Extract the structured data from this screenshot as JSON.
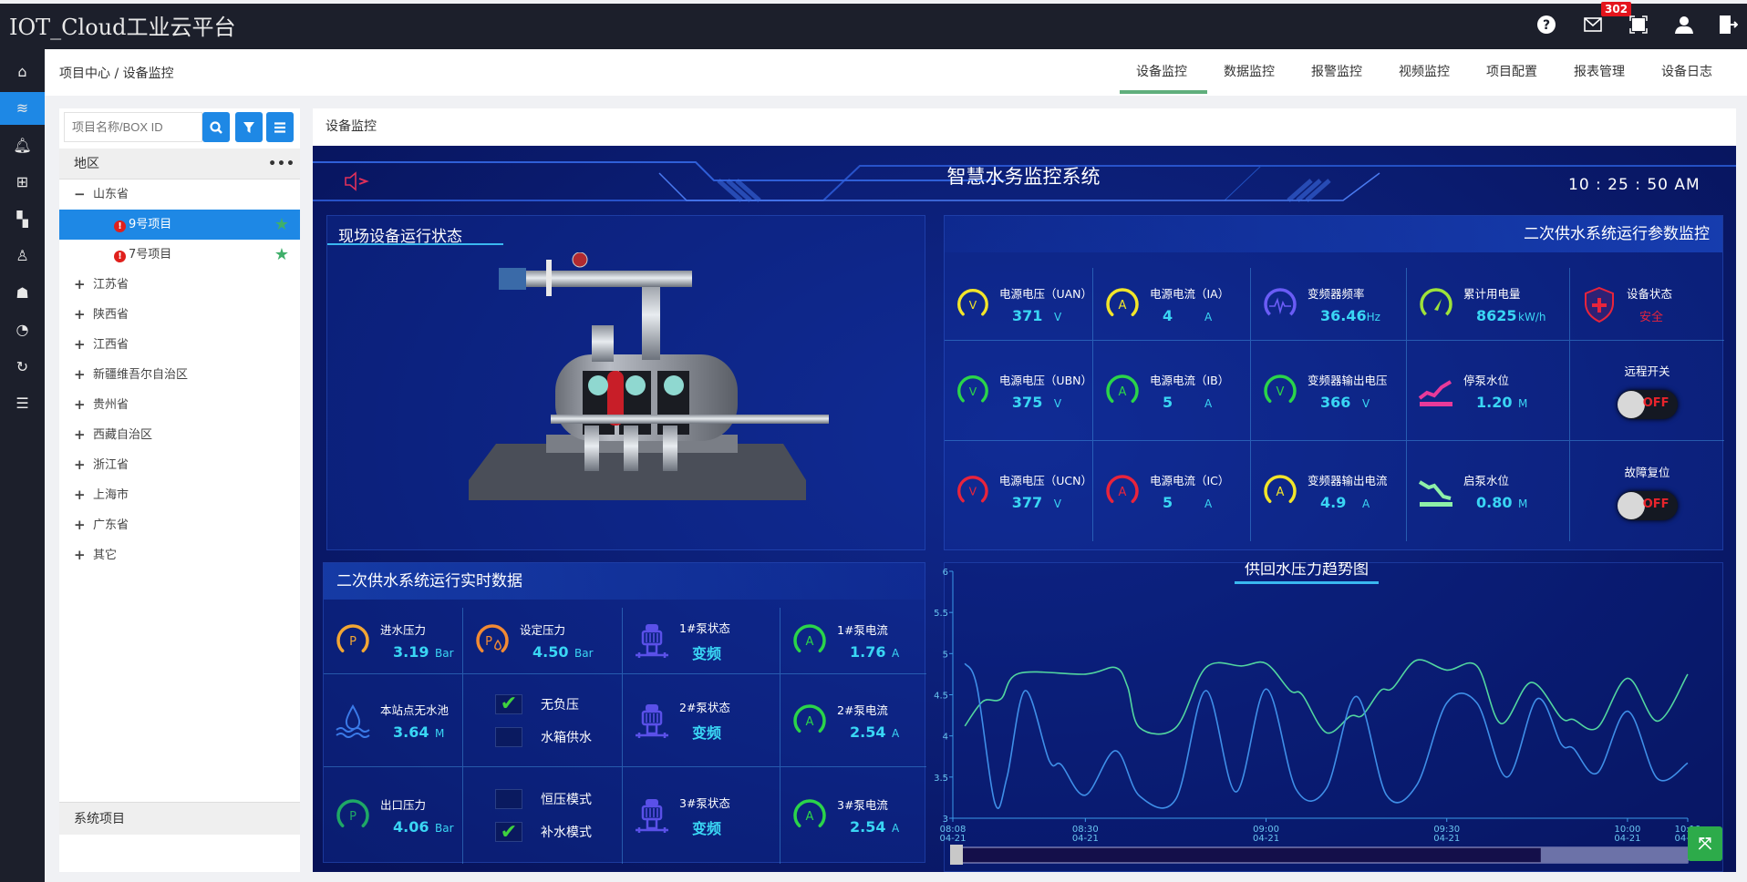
{
  "app": {
    "title": "IOT_Cloud工业云平台",
    "mail_badge": "302",
    "top_icons": [
      "help-icon",
      "mail-icon",
      "fullscreen-icon",
      "user-icon",
      "logout-icon"
    ]
  },
  "sidebar": {
    "icons": [
      "home-icon",
      "layers-icon",
      "bell-icon",
      "add-document-icon",
      "dashboard-icon",
      "user-icon",
      "user-group-icon",
      "gauge-icon",
      "refresh-icon",
      "list-icon"
    ],
    "active_index": 1,
    "active_color": "#1e88e5"
  },
  "breadcrumb": "项目中心 / 设备监控",
  "nav": {
    "tabs": [
      "设备监控",
      "数据监控",
      "报警监控",
      "视频监控",
      "项目配置",
      "报表管理",
      "设备日志"
    ],
    "active": "设备监控"
  },
  "left": {
    "search_placeholder": "项目名称/BOX ID",
    "region_header": "地区",
    "more": "•••",
    "tree": [
      {
        "label": "山东省",
        "sign": "−",
        "level": 0
      },
      {
        "label": "9号项目",
        "level": 1,
        "alert": true,
        "star": true,
        "selected": true
      },
      {
        "label": "7号项目",
        "level": 1,
        "alert": true,
        "star": true
      },
      {
        "label": "江苏省",
        "sign": "+",
        "level": 0
      },
      {
        "label": "陕西省",
        "sign": "+",
        "level": 0
      },
      {
        "label": "江西省",
        "sign": "+",
        "level": 0
      },
      {
        "label": "新疆维吾尔自治区",
        "sign": "+",
        "level": 0
      },
      {
        "label": "贵州省",
        "sign": "+",
        "level": 0
      },
      {
        "label": "西藏自治区",
        "sign": "+",
        "level": 0
      },
      {
        "label": "浙江省",
        "sign": "+",
        "level": 0
      },
      {
        "label": "上海市",
        "sign": "+",
        "level": 0
      },
      {
        "label": "广东省",
        "sign": "+",
        "level": 0
      },
      {
        "label": "其它",
        "sign": "+",
        "level": 0
      }
    ],
    "system_header": "系统项目"
  },
  "right_header": "设备监控",
  "dashboard": {
    "title": "智慧水务监控系统",
    "time": "10 : 25 : 50  AM",
    "equipment_panel_title": "现场设备运行状态",
    "params_title": "二次供水系统运行参数监控",
    "params": [
      {
        "label": "电源电压（UAN）",
        "value": "371",
        "unit": "V",
        "icon": "gauge",
        "letter": "V",
        "color": "#f2e52a"
      },
      {
        "label": "电源电流（IA）",
        "value": "4",
        "unit": "A",
        "icon": "gauge",
        "letter": "A",
        "color": "#f2e52a"
      },
      {
        "label": "变频器频率",
        "value": "36.46",
        "unit": "Hz",
        "icon": "wave",
        "color": "#6a5cf6"
      },
      {
        "label": "累计用电量",
        "value": "8625",
        "unit": "kW/h",
        "icon": "meter",
        "color": "#9ee23a"
      },
      {
        "label": "设备状态",
        "value": "安全",
        "icon": "shield",
        "color": "#e8243c"
      },
      {
        "label": "电源电压（UBN）",
        "value": "375",
        "unit": "V",
        "icon": "gauge",
        "letter": "V",
        "color": "#2bd44a"
      },
      {
        "label": "电源电流（IB）",
        "value": "5",
        "unit": "A",
        "icon": "gauge",
        "letter": "A",
        "color": "#2bd44a"
      },
      {
        "label": "变频器输出电压",
        "value": "366",
        "unit": "V",
        "icon": "gauge",
        "letter": "V",
        "color": "#2bd44a"
      },
      {
        "label": "停泵水位",
        "value": "1.20",
        "unit": "M",
        "icon": "level-up",
        "color": "#e83a9a"
      },
      {
        "label": "远程开关",
        "value": "OFF",
        "icon": "toggle"
      },
      {
        "label": "电源电压（UCN）",
        "value": "377",
        "unit": "V",
        "icon": "gauge",
        "letter": "V",
        "color": "#e8243c"
      },
      {
        "label": "电源电流（IC）",
        "value": "5",
        "unit": "A",
        "icon": "gauge",
        "letter": "A",
        "color": "#e8243c"
      },
      {
        "label": "变频器输出电流",
        "value": "4.9",
        "unit": "A",
        "icon": "gauge",
        "letter": "A",
        "color": "#f2e52a"
      },
      {
        "label": "启泵水位",
        "value": "0.80",
        "unit": "M",
        "icon": "level-down",
        "color": "#8ef0a8"
      },
      {
        "label": "故障复位",
        "value": "OFF",
        "icon": "toggle"
      }
    ],
    "realtime_title": "二次供水系统运行实时数据",
    "realtime": [
      {
        "label": "进水压力",
        "value": "3.19",
        "unit": "Bar",
        "icon": "gauge",
        "letter": "P",
        "color": "#f2a634"
      },
      {
        "label": "设定压力",
        "value": "4.50",
        "unit": "Bar",
        "icon": "gauge-drop",
        "letter": "P",
        "color": "#f28a34"
      },
      {
        "label": "1#泵状态",
        "value": "变频",
        "icon": "pump",
        "color": "#5a50e8"
      },
      {
        "label": "1#泵电流",
        "value": "1.76",
        "unit": "A",
        "icon": "gauge",
        "letter": "A",
        "color": "#2bd44a"
      },
      {
        "label": "本站点无水池",
        "value": "3.64",
        "unit": "M",
        "icon": "water",
        "color": "#3a7ae8"
      },
      {
        "icon": "checks",
        "checks": [
          {
            "label": "无负压",
            "checked": true
          },
          {
            "label": "水箱供水",
            "checked": false
          }
        ]
      },
      {
        "label": "2#泵状态",
        "value": "变频",
        "icon": "pump",
        "color": "#5a50e8"
      },
      {
        "label": "2#泵电流",
        "value": "2.54",
        "unit": "A",
        "icon": "gauge",
        "letter": "A",
        "color": "#2bd44a"
      },
      {
        "label": "出口压力",
        "value": "4.06",
        "unit": "Bar",
        "icon": "gauge",
        "letter": "P",
        "color": "#1fa866"
      },
      {
        "icon": "checks",
        "checks": [
          {
            "label": "恒压模式",
            "checked": false
          },
          {
            "label": "补水模式",
            "checked": true
          }
        ]
      },
      {
        "label": "3#泵状态",
        "value": "变频",
        "icon": "pump",
        "color": "#5a50e8"
      },
      {
        "label": "3#泵电流",
        "value": "2.54",
        "unit": "A",
        "icon": "gauge",
        "letter": "A",
        "color": "#2bd44a"
      }
    ]
  },
  "chart_data": {
    "type": "line",
    "title": "供回水压力趋势图",
    "ylim": [
      3,
      6
    ],
    "yticks": [
      "3",
      "3.5",
      "4",
      "4.5",
      "5",
      "5.5",
      "6"
    ],
    "xlim": [
      "08:08",
      "10:10"
    ],
    "xticks": [
      {
        "t": "08:08",
        "label": [
          "08:08",
          "04-21"
        ]
      },
      {
        "t": "08:30",
        "label": [
          "08:30",
          "04-21"
        ]
      },
      {
        "t": "09:00",
        "label": [
          "09:00",
          "04-21"
        ]
      },
      {
        "t": "09:30",
        "label": [
          "09:30",
          "04-21"
        ]
      },
      {
        "t": "10:00",
        "label": [
          "10:00",
          "04-21"
        ]
      },
      {
        "t": "10:10",
        "label": [
          "10:10",
          "04-21"
        ]
      }
    ],
    "grid": false,
    "slider_range_percent": [
      80,
      100
    ],
    "series": [
      {
        "color": "#52d6a0",
        "points": [
          [
            "08:10",
            4.12
          ],
          [
            "08:13",
            4.42
          ],
          [
            "08:16",
            4.45
          ],
          [
            "08:19",
            4.76
          ],
          [
            "08:30",
            4.75
          ],
          [
            "08:35",
            4.83
          ],
          [
            "08:37",
            4.6
          ],
          [
            "08:39",
            4.1
          ],
          [
            "08:45",
            4.1
          ],
          [
            "08:50",
            4.83
          ],
          [
            "08:56",
            4.85
          ],
          [
            "09:00",
            4.88
          ],
          [
            "09:04",
            4.55
          ],
          [
            "09:06",
            4.5
          ],
          [
            "09:10",
            4.04
          ],
          [
            "09:14",
            4.24
          ],
          [
            "09:16",
            4.25
          ],
          [
            "09:19",
            4.55
          ],
          [
            "09:21",
            4.58
          ],
          [
            "09:25",
            4.92
          ],
          [
            "09:30",
            4.8
          ],
          [
            "09:35",
            4.85
          ],
          [
            "09:39",
            4.15
          ],
          [
            "09:44",
            4.65
          ],
          [
            "09:49",
            4.22
          ],
          [
            "09:51",
            4.2
          ],
          [
            "09:55",
            4.1
          ],
          [
            "10:00",
            4.7
          ],
          [
            "10:05",
            4.18
          ],
          [
            "10:10",
            4.75
          ]
        ]
      },
      {
        "color": "#3f8fe8",
        "points": [
          [
            "08:10",
            4.88
          ],
          [
            "08:12",
            4.6
          ],
          [
            "08:15",
            3.18
          ],
          [
            "08:17",
            3.5
          ],
          [
            "08:20",
            4.55
          ],
          [
            "08:24",
            3.7
          ],
          [
            "08:26",
            3.65
          ],
          [
            "08:30",
            3.28
          ],
          [
            "08:35",
            3.82
          ],
          [
            "08:39",
            3.27
          ],
          [
            "08:45",
            3.23
          ],
          [
            "08:50",
            4.55
          ],
          [
            "08:55",
            3.32
          ],
          [
            "09:00",
            4.57
          ],
          [
            "09:05",
            3.35
          ],
          [
            "09:10",
            3.36
          ],
          [
            "09:15",
            4.48
          ],
          [
            "09:20",
            3.28
          ],
          [
            "09:25",
            3.4
          ],
          [
            "09:30",
            4.4
          ],
          [
            "09:35",
            4.4
          ],
          [
            "09:40",
            3.5
          ],
          [
            "09:45",
            4.45
          ],
          [
            "09:49",
            3.9
          ],
          [
            "09:51",
            3.85
          ],
          [
            "09:55",
            3.55
          ],
          [
            "10:00",
            4.3
          ],
          [
            "10:05",
            3.48
          ],
          [
            "10:10",
            3.67
          ]
        ]
      }
    ]
  }
}
